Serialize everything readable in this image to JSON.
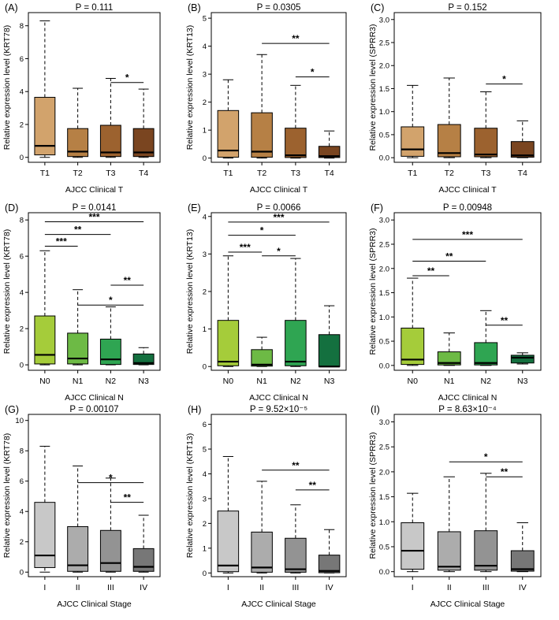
{
  "colors": {
    "t_series": [
      "#d2a36c",
      "#b68045",
      "#9c622f",
      "#7a4520"
    ],
    "n_series": [
      "#a5cc3a",
      "#6dba45",
      "#2fa552",
      "#14703f"
    ],
    "stage_series": [
      "#c8c8c8",
      "#acacac",
      "#939393",
      "#777777"
    ]
  },
  "chart_data": [
    {
      "panel": "(A)",
      "type": "boxplot",
      "title": "P = 0.111",
      "xlabel": "AJCC Clinical T",
      "ylabel": "Relative expression level (KRT78)",
      "categories": [
        "T1",
        "T2",
        "T3",
        "T4"
      ],
      "ylim": [
        -0.3,
        8.8
      ],
      "yticks": [
        0,
        2,
        4,
        6,
        8
      ],
      "boxes": [
        {
          "whislo": 0,
          "q1": 0.15,
          "med": 0.7,
          "q3": 3.65,
          "whishi": 8.3
        },
        {
          "whislo": 0,
          "q1": 0.05,
          "med": 0.35,
          "q3": 1.75,
          "whishi": 4.2
        },
        {
          "whislo": 0,
          "q1": 0.05,
          "med": 0.3,
          "q3": 1.95,
          "whishi": 4.8
        },
        {
          "whislo": 0,
          "q1": 0.05,
          "med": 0.3,
          "q3": 1.75,
          "whishi": 4.15
        }
      ],
      "palette": "t_series",
      "brackets": [
        {
          "from": 2,
          "to": 3,
          "y": 4.55,
          "label": "*"
        }
      ]
    },
    {
      "panel": "(B)",
      "type": "boxplot",
      "title": "P = 0.0305",
      "xlabel": "AJCC Clinical T",
      "ylabel": "Relative expression level (KRT13)",
      "categories": [
        "T1",
        "T2",
        "T3",
        "T4"
      ],
      "ylim": [
        -0.15,
        5.2
      ],
      "yticks": [
        0,
        1,
        2,
        3,
        4,
        5
      ],
      "boxes": [
        {
          "whislo": 0,
          "q1": 0.03,
          "med": 0.27,
          "q3": 1.7,
          "whishi": 2.8
        },
        {
          "whislo": 0,
          "q1": 0.03,
          "med": 0.23,
          "q3": 1.62,
          "whishi": 3.7
        },
        {
          "whislo": 0,
          "q1": 0.02,
          "med": 0.1,
          "q3": 1.07,
          "whishi": 2.6
        },
        {
          "whislo": 0,
          "q1": 0.02,
          "med": 0.07,
          "q3": 0.42,
          "whishi": 0.97
        }
      ],
      "palette": "t_series",
      "brackets": [
        {
          "from": 1,
          "to": 3,
          "y": 4.1,
          "label": "**"
        },
        {
          "from": 2,
          "to": 3,
          "y": 2.9,
          "label": "*"
        }
      ]
    },
    {
      "panel": "(C)",
      "type": "boxplot",
      "title": "P = 0.152",
      "xlabel": "AJCC Clinical T",
      "ylabel": "Relative expression level (SPRR3)",
      "categories": [
        "T1",
        "T2",
        "T3",
        "T4"
      ],
      "ylim": [
        -0.1,
        3.15
      ],
      "yticks": [
        0.0,
        0.5,
        1.0,
        1.5,
        2.0,
        2.5,
        3.0
      ],
      "boxes": [
        {
          "whislo": 0,
          "q1": 0.03,
          "med": 0.18,
          "q3": 0.67,
          "whishi": 1.57
        },
        {
          "whislo": 0,
          "q1": 0.02,
          "med": 0.1,
          "q3": 0.72,
          "whishi": 1.73
        },
        {
          "whislo": 0,
          "q1": 0.02,
          "med": 0.07,
          "q3": 0.64,
          "whishi": 1.43
        },
        {
          "whislo": 0,
          "q1": 0.01,
          "med": 0.05,
          "q3": 0.35,
          "whishi": 0.8
        }
      ],
      "palette": "t_series",
      "brackets": [
        {
          "from": 2,
          "to": 3,
          "y": 1.6,
          "label": "*"
        }
      ]
    },
    {
      "panel": "(D)",
      "type": "boxplot",
      "title": "P = 0.0141",
      "xlabel": "AJCC Clinical N",
      "ylabel": "Relative expression level (KRT78)",
      "categories": [
        "N0",
        "N1",
        "N2",
        "N3"
      ],
      "ylim": [
        -0.3,
        8.4
      ],
      "yticks": [
        0,
        2,
        4,
        6,
        8
      ],
      "boxes": [
        {
          "whislo": 0,
          "q1": 0.05,
          "med": 0.55,
          "q3": 2.7,
          "whishi": 6.3
        },
        {
          "whislo": 0,
          "q1": 0.05,
          "med": 0.35,
          "q3": 1.75,
          "whishi": 4.15
        },
        {
          "whislo": 0,
          "q1": 0.02,
          "med": 0.3,
          "q3": 1.42,
          "whishi": 3.2
        },
        {
          "whislo": 0,
          "q1": 0.02,
          "med": 0.1,
          "q3": 0.6,
          "whishi": 0.95
        }
      ],
      "palette": "n_series",
      "brackets": [
        {
          "from": 0,
          "to": 3,
          "y": 7.9,
          "label": "***"
        },
        {
          "from": 0,
          "to": 2,
          "y": 7.2,
          "label": "**"
        },
        {
          "from": 0,
          "to": 1,
          "y": 6.55,
          "label": "***"
        },
        {
          "from": 2,
          "to": 3,
          "y": 4.4,
          "label": "**"
        },
        {
          "from": 1,
          "to": 3,
          "y": 3.3,
          "label": "*"
        }
      ]
    },
    {
      "panel": "(E)",
      "type": "boxplot",
      "title": "P = 0.0066",
      "xlabel": "AJCC Clinical N",
      "ylabel": "Relative expression level (KRT13)",
      "categories": [
        "N0",
        "N1",
        "N2",
        "N3"
      ],
      "ylim": [
        -0.1,
        4.1
      ],
      "yticks": [
        0,
        1,
        2,
        3,
        4
      ],
      "boxes": [
        {
          "whislo": 0,
          "q1": 0.02,
          "med": 0.13,
          "q3": 1.23,
          "whishi": 2.95
        },
        {
          "whislo": 0,
          "q1": 0.01,
          "med": 0.05,
          "q3": 0.45,
          "whishi": 0.78
        },
        {
          "whislo": 0,
          "q1": 0.02,
          "med": 0.13,
          "q3": 1.23,
          "whishi": 2.88
        },
        {
          "whislo": 0,
          "q1": 0,
          "med": 0,
          "q3": 0.85,
          "whishi": 1.62
        }
      ],
      "palette": "n_series",
      "brackets": [
        {
          "from": 0,
          "to": 3,
          "y": 3.85,
          "label": "***"
        },
        {
          "from": 0,
          "to": 2,
          "y": 3.5,
          "label": "*"
        },
        {
          "from": 0,
          "to": 1,
          "y": 3.05,
          "label": "***"
        },
        {
          "from": 1,
          "to": 2,
          "y": 2.95,
          "label": "*"
        }
      ]
    },
    {
      "panel": "(F)",
      "type": "boxplot",
      "title": "P = 0.00948",
      "xlabel": "AJCC Clinical N",
      "ylabel": "Relative expression level (SPRR3)",
      "categories": [
        "N0",
        "N1",
        "N2",
        "N3"
      ],
      "ylim": [
        -0.1,
        3.15
      ],
      "yticks": [
        0.0,
        0.5,
        1.0,
        1.5,
        2.0,
        2.5,
        3.0
      ],
      "boxes": [
        {
          "whislo": 0,
          "q1": 0.02,
          "med": 0.12,
          "q3": 0.77,
          "whishi": 1.8
        },
        {
          "whislo": 0,
          "q1": 0.01,
          "med": 0.05,
          "q3": 0.28,
          "whishi": 0.67
        },
        {
          "whislo": 0,
          "q1": 0.01,
          "med": 0.05,
          "q3": 0.47,
          "whishi": 1.13
        },
        {
          "whislo": 0.03,
          "q1": 0.05,
          "med": 0.16,
          "q3": 0.21,
          "whishi": 0.26
        }
      ],
      "palette": "n_series",
      "brackets": [
        {
          "from": 0,
          "to": 3,
          "y": 2.6,
          "label": "***"
        },
        {
          "from": 0,
          "to": 2,
          "y": 2.15,
          "label": "**"
        },
        {
          "from": 0,
          "to": 1,
          "y": 1.85,
          "label": "**"
        },
        {
          "from": 2,
          "to": 3,
          "y": 0.83,
          "label": "**"
        }
      ]
    },
    {
      "panel": "(G)",
      "type": "boxplot",
      "title": "P = 0.00107",
      "xlabel": "AJCC Clinical Stage",
      "ylabel": "Relative expression level (KRT78)",
      "categories": [
        "I",
        "II",
        "III",
        "IV"
      ],
      "ylim": [
        -0.3,
        10.4
      ],
      "yticks": [
        0,
        2,
        4,
        6,
        8,
        10
      ],
      "boxes": [
        {
          "whislo": 0,
          "q1": 0.3,
          "med": 1.1,
          "q3": 4.6,
          "whishi": 8.3
        },
        {
          "whislo": 0,
          "q1": 0.05,
          "med": 0.45,
          "q3": 3.0,
          "whishi": 7.0
        },
        {
          "whislo": 0,
          "q1": 0.05,
          "med": 0.6,
          "q3": 2.75,
          "whishi": 6.2
        },
        {
          "whislo": 0,
          "q1": 0.05,
          "med": 0.35,
          "q3": 1.55,
          "whishi": 3.75
        }
      ],
      "palette": "stage_series",
      "brackets": [
        {
          "from": 1,
          "to": 3,
          "y": 5.9,
          "label": "*"
        },
        {
          "from": 2,
          "to": 3,
          "y": 4.6,
          "label": "**"
        }
      ]
    },
    {
      "panel": "(H)",
      "type": "boxplot",
      "title": "P = 9.52×10⁻⁵",
      "xlabel": "AJCC Clinical Stage",
      "ylabel": "Relative expression level (KRT13)",
      "categories": [
        "I",
        "II",
        "III",
        "IV"
      ],
      "ylim": [
        -0.15,
        6.4
      ],
      "yticks": [
        0,
        1,
        2,
        3,
        4,
        5,
        6
      ],
      "boxes": [
        {
          "whislo": 0,
          "q1": 0.05,
          "med": 0.3,
          "q3": 2.5,
          "whishi": 4.7
        },
        {
          "whislo": 0,
          "q1": 0.03,
          "med": 0.22,
          "q3": 1.65,
          "whishi": 3.7
        },
        {
          "whislo": 0,
          "q1": 0.03,
          "med": 0.15,
          "q3": 1.4,
          "whishi": 2.75
        },
        {
          "whislo": 0,
          "q1": 0.01,
          "med": 0.08,
          "q3": 0.72,
          "whishi": 1.75
        }
      ],
      "palette": "stage_series",
      "brackets": [
        {
          "from": 1,
          "to": 3,
          "y": 4.15,
          "label": "**"
        },
        {
          "from": 2,
          "to": 3,
          "y": 3.35,
          "label": "**"
        }
      ]
    },
    {
      "panel": "(I)",
      "type": "boxplot",
      "title": "P = 8.63×10⁻⁴",
      "xlabel": "AJCC Clinical Stage",
      "ylabel": "Relative expression level (SPRR3)",
      "categories": [
        "I",
        "II",
        "III",
        "IV"
      ],
      "ylim": [
        -0.1,
        3.15
      ],
      "yticks": [
        0.0,
        0.5,
        1.0,
        1.5,
        2.0,
        2.5,
        3.0
      ],
      "boxes": [
        {
          "whislo": 0,
          "q1": 0.05,
          "med": 0.42,
          "q3": 0.98,
          "whishi": 1.57
        },
        {
          "whislo": 0,
          "q1": 0.03,
          "med": 0.1,
          "q3": 0.8,
          "whishi": 1.9
        },
        {
          "whislo": 0,
          "q1": 0.03,
          "med": 0.12,
          "q3": 0.82,
          "whishi": 1.97
        },
        {
          "whislo": 0,
          "q1": 0.01,
          "med": 0.05,
          "q3": 0.42,
          "whishi": 0.98
        }
      ],
      "palette": "stage_series",
      "brackets": [
        {
          "from": 1,
          "to": 3,
          "y": 2.2,
          "label": "*"
        },
        {
          "from": 2,
          "to": 3,
          "y": 1.9,
          "label": "**"
        }
      ]
    }
  ]
}
